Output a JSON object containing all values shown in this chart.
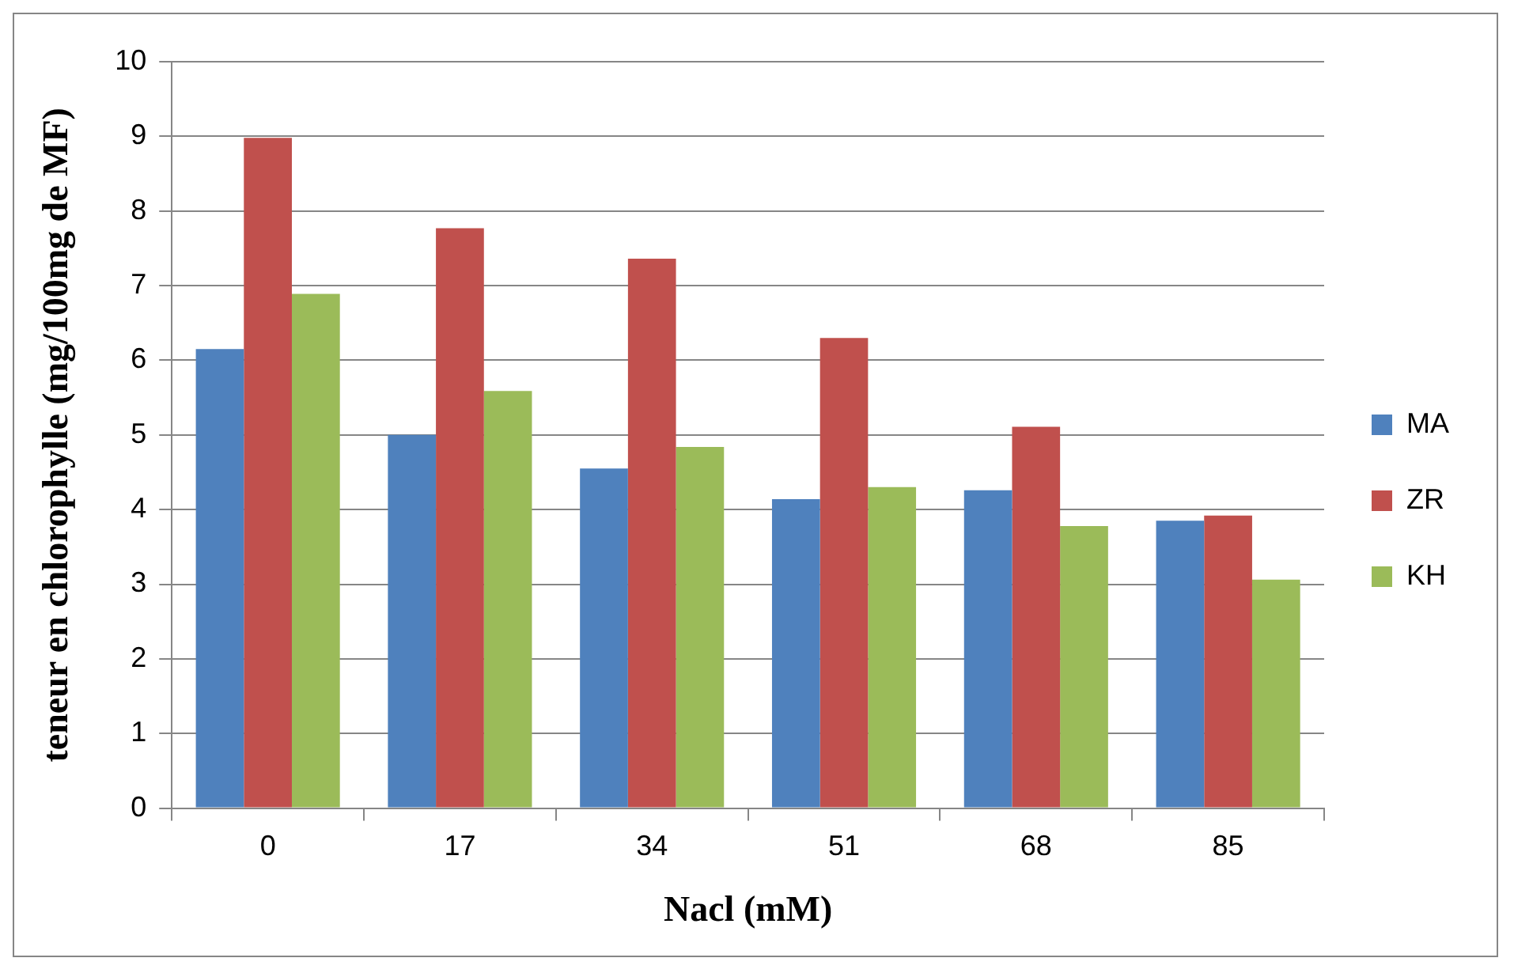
{
  "chart_data": {
    "type": "bar",
    "xlabel": "Nacl (mM)",
    "ylabel": "teneur en chlorophylle (mg/100mg de MF)",
    "categories": [
      "0",
      "17",
      "34",
      "51",
      "68",
      "85"
    ],
    "series": [
      {
        "name": "MA",
        "color": "#4f81bd",
        "values": [
          6.15,
          5.0,
          4.55,
          4.14,
          4.26,
          3.85
        ]
      },
      {
        "name": "ZR",
        "color": "#c0504d",
        "values": [
          8.98,
          7.77,
          7.36,
          6.3,
          5.11,
          3.92
        ]
      },
      {
        "name": "KH",
        "color": "#9bbb59",
        "values": [
          6.89,
          5.59,
          4.84,
          4.3,
          3.78,
          3.06
        ]
      }
    ],
    "ylim": [
      0,
      10
    ],
    "yticks": [
      0,
      1,
      2,
      3,
      4,
      5,
      6,
      7,
      8,
      9,
      10
    ],
    "grid": "y",
    "legend": "right"
  }
}
